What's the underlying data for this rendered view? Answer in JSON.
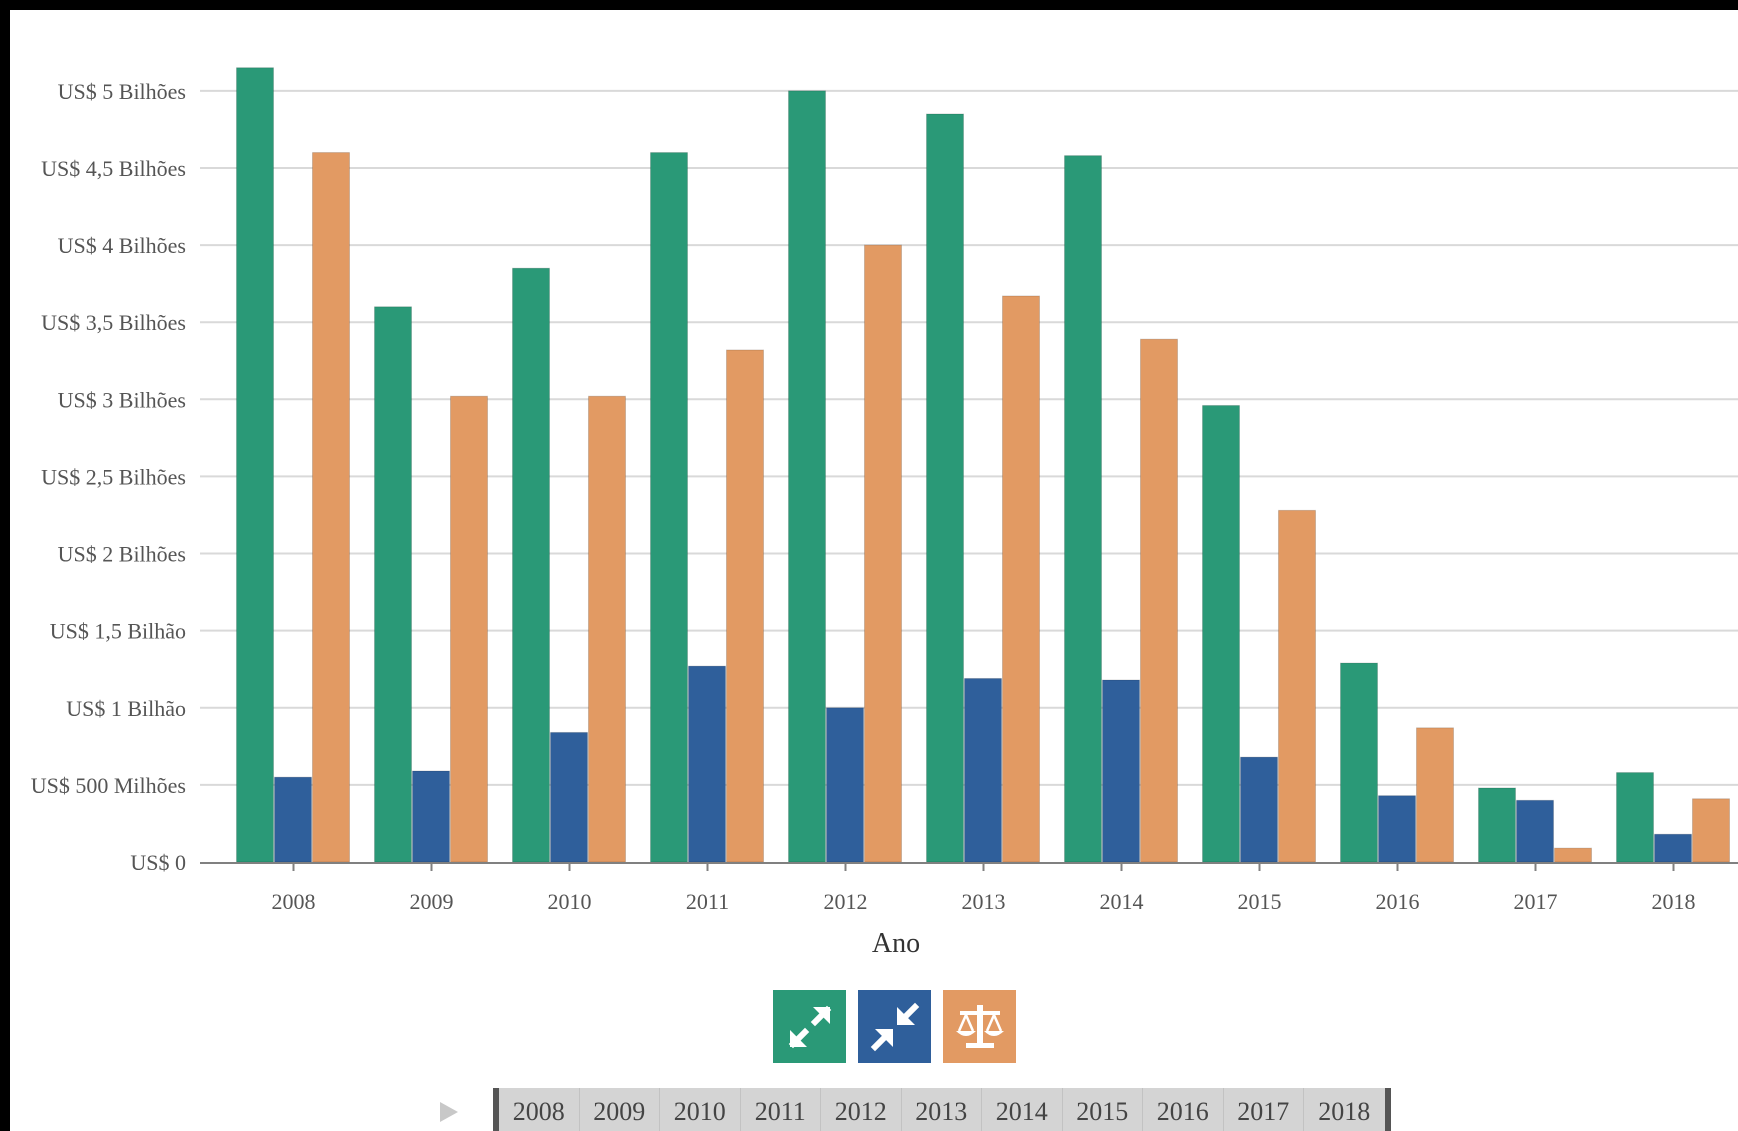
{
  "chart_data": {
    "type": "bar",
    "categories": [
      "2008",
      "2009",
      "2010",
      "2011",
      "2012",
      "2013",
      "2014",
      "2015",
      "2016",
      "2017",
      "2018"
    ],
    "series": [
      {
        "color": "#2a9977",
        "values": [
          5.15,
          3.6,
          3.85,
          4.6,
          5.0,
          4.85,
          4.58,
          2.96,
          1.29,
          0.48,
          0.58
        ]
      },
      {
        "color": "#2f5f9b",
        "values": [
          0.55,
          0.59,
          0.84,
          1.27,
          1.0,
          1.19,
          1.18,
          0.68,
          0.43,
          0.4,
          0.18
        ]
      },
      {
        "color": "#e29a63",
        "values": [
          4.6,
          3.02,
          3.02,
          3.32,
          4.0,
          3.67,
          3.39,
          2.28,
          0.87,
          0.09,
          0.41
        ]
      }
    ],
    "yticks": [
      {
        "value": 0,
        "label": "US$ 0"
      },
      {
        "value": 0.5,
        "label": "US$ 500 Milhões"
      },
      {
        "value": 1,
        "label": "US$ 1 Bilhão"
      },
      {
        "value": 1.5,
        "label": "US$ 1,5 Bilhão"
      },
      {
        "value": 2,
        "label": "US$ 2 Bilhões"
      },
      {
        "value": 2.5,
        "label": "US$ 2,5 Bilhões"
      },
      {
        "value": 3,
        "label": "US$ 3 Bilhões"
      },
      {
        "value": 3.5,
        "label": "US$ 3,5 Bilhões"
      },
      {
        "value": 4,
        "label": "US$ 4 Bilhões"
      },
      {
        "value": 4.5,
        "label": "US$ 4,5 Bilhões"
      },
      {
        "value": 5,
        "label": "US$ 5 Bilhões"
      }
    ],
    "xlabel": "Ano",
    "ylabel": "",
    "ylim": [
      0,
      5.2
    ],
    "grid": true
  },
  "legend": {
    "items": [
      {
        "icon": "expand-arrows-icon",
        "color": "#2a9977"
      },
      {
        "icon": "compress-arrows-icon",
        "color": "#2f5f9b"
      },
      {
        "icon": "balance-scale-icon",
        "color": "#e29a63"
      }
    ]
  },
  "timeline": {
    "play_icon": "play-icon",
    "years": [
      "2008",
      "2009",
      "2010",
      "2011",
      "2012",
      "2013",
      "2014",
      "2015",
      "2016",
      "2017",
      "2018"
    ]
  }
}
